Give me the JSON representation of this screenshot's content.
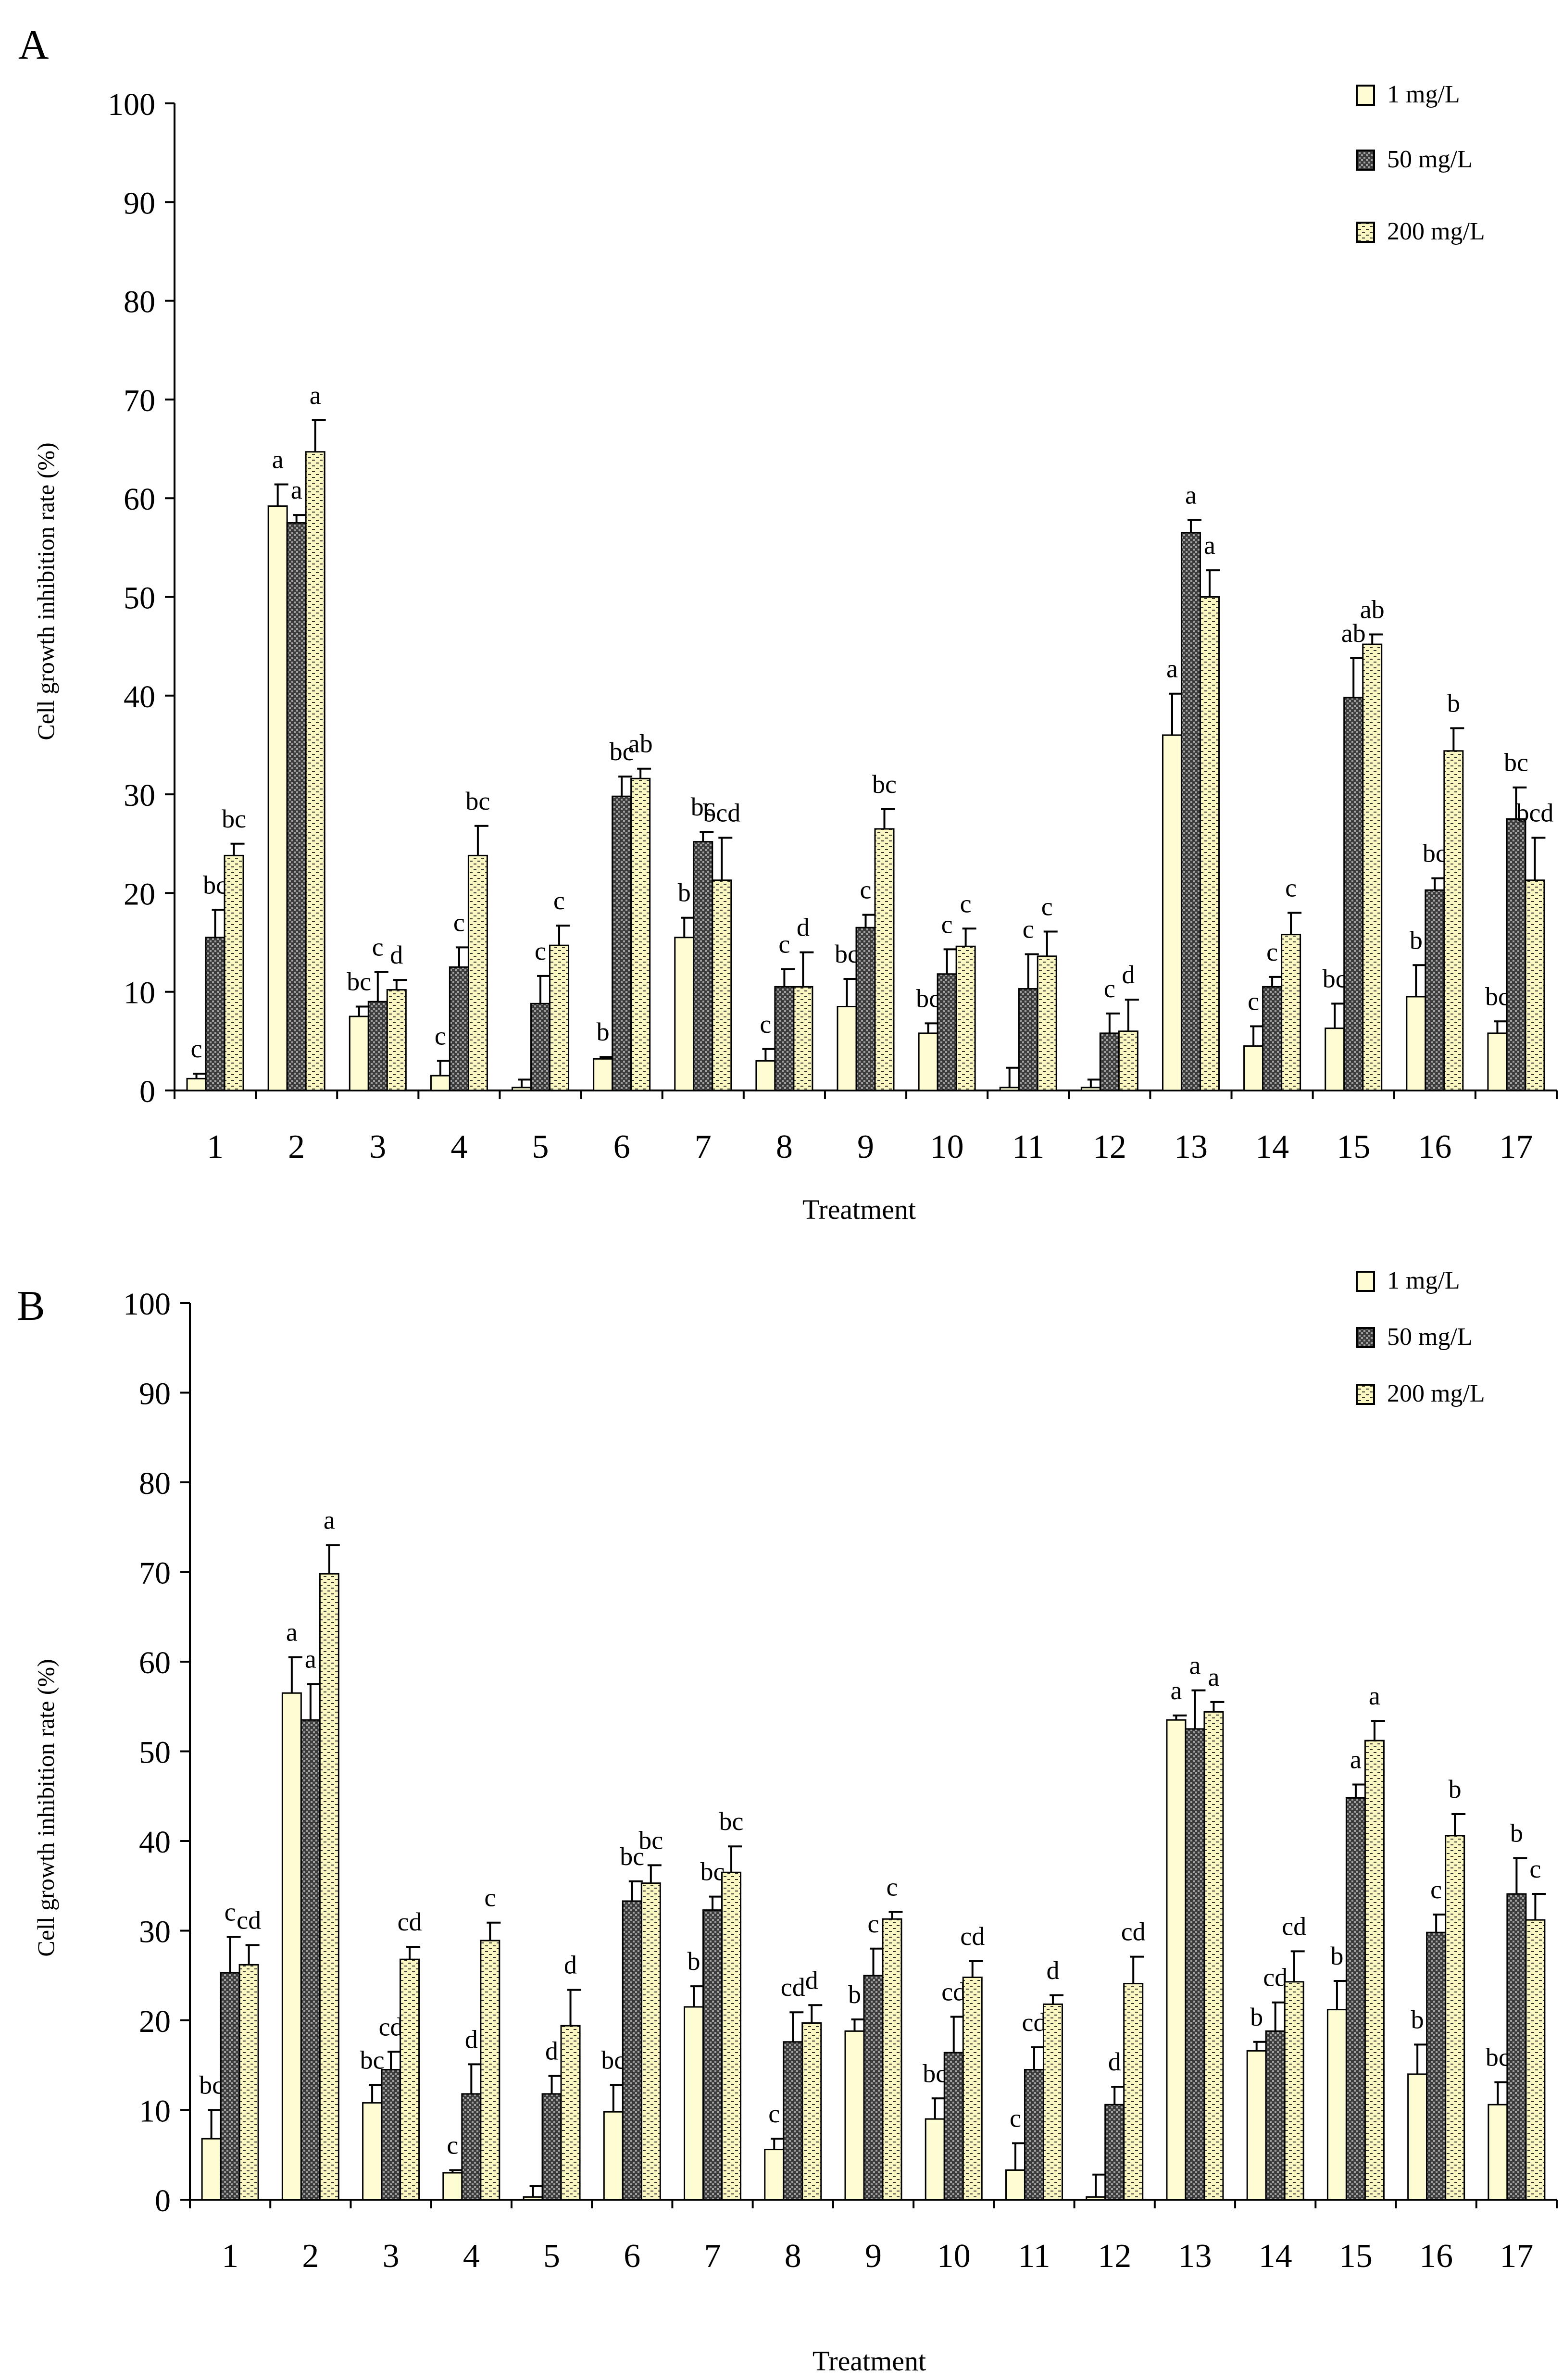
{
  "colors": {
    "series_1mg": "#fdfcd2",
    "series_50mg": "#6c6c6c",
    "series_200mg": "#f5f1bd",
    "axis": "#000000"
  },
  "chart_data": [
    {
      "type": "bar",
      "panel_label": "A",
      "title": "",
      "xlabel": "Treatment",
      "ylabel": "Cell growth inhibition rate (%)",
      "ylim": [
        0,
        100
      ],
      "yticks": [
        "0",
        "10",
        "20",
        "30",
        "40",
        "50",
        "60",
        "70",
        "80",
        "90",
        "100"
      ],
      "categories": [
        "1",
        "2",
        "3",
        "4",
        "5",
        "6",
        "7",
        "8",
        "9",
        "10",
        "11",
        "12",
        "13",
        "14",
        "15",
        "16",
        "17"
      ],
      "legend_position": "top-right",
      "series": [
        {
          "name": "1 mg/L",
          "values": [
            1.2,
            59.2,
            7.5,
            1.5,
            0.3,
            3.2,
            15.5,
            3.0,
            8.5,
            5.8,
            0.3,
            0.3,
            36.0,
            4.5,
            6.3,
            9.5,
            5.8
          ],
          "errors": [
            0.5,
            2.2,
            1.0,
            1.5,
            0.8,
            0.2,
            2.0,
            1.2,
            2.8,
            1.0,
            2.0,
            0.8,
            4.2,
            2.0,
            2.5,
            3.2,
            1.2
          ],
          "labels": [
            "c",
            "a",
            "bc",
            "c",
            "",
            "b",
            "b",
            "c",
            "bc",
            "bc",
            "",
            "",
            "a",
            "c",
            "bc",
            "b",
            "bc"
          ]
        },
        {
          "name": "50 mg/L",
          "values": [
            15.5,
            57.5,
            9.0,
            12.5,
            8.8,
            29.8,
            25.2,
            10.5,
            16.5,
            11.8,
            10.3,
            5.8,
            56.5,
            10.5,
            39.8,
            20.3,
            27.5
          ],
          "errors": [
            2.8,
            0.8,
            3.0,
            2.0,
            2.8,
            2.0,
            1.0,
            1.8,
            1.3,
            2.5,
            3.5,
            2.0,
            1.3,
            1.0,
            4.0,
            1.2,
            3.2
          ],
          "labels": [
            "bc",
            "a",
            "c",
            "c",
            "c",
            "bc",
            "bc",
            "c",
            "c",
            "c",
            "c",
            "c",
            "a",
            "c",
            "ab",
            "bc",
            "bc"
          ]
        },
        {
          "name": "200 mg/L",
          "values": [
            23.8,
            64.7,
            10.2,
            23.8,
            14.7,
            31.6,
            21.3,
            10.5,
            26.5,
            14.6,
            13.6,
            6.0,
            50.0,
            15.8,
            45.2,
            34.4,
            21.3
          ],
          "errors": [
            1.2,
            3.2,
            1.0,
            3.0,
            2.0,
            1.0,
            4.3,
            3.5,
            2.0,
            1.8,
            2.5,
            3.2,
            2.7,
            2.2,
            1.0,
            2.3,
            4.3
          ],
          "labels": [
            "bc",
            "a",
            "d",
            "bc",
            "c",
            "ab",
            "bcd",
            "d",
            "bc",
            "c",
            "c",
            "d",
            "a",
            "c",
            "ab",
            "b",
            "bcd"
          ]
        }
      ]
    },
    {
      "type": "bar",
      "panel_label": "B",
      "title": "",
      "xlabel": "Treatment",
      "ylabel": "Cell growth inhibition rate (%)",
      "ylim": [
        0,
        100
      ],
      "yticks": [
        "0",
        "10",
        "20",
        "30",
        "40",
        "50",
        "60",
        "70",
        "80",
        "90",
        "100"
      ],
      "categories": [
        "1",
        "2",
        "3",
        "4",
        "5",
        "6",
        "7",
        "8",
        "9",
        "10",
        "11",
        "12",
        "13",
        "14",
        "15",
        "16",
        "17"
      ],
      "legend_position": "top-right",
      "series": [
        {
          "name": "1 mg/L",
          "values": [
            6.8,
            56.5,
            10.8,
            3.0,
            0.3,
            9.8,
            21.5,
            5.6,
            18.8,
            9.0,
            3.3,
            0.3,
            53.5,
            16.6,
            21.2,
            14.0,
            10.6
          ],
          "errors": [
            3.2,
            4.0,
            2.0,
            0.3,
            1.2,
            3.0,
            2.3,
            1.2,
            1.3,
            2.3,
            3.0,
            2.5,
            0.5,
            1.0,
            3.2,
            3.3,
            2.5
          ],
          "labels": [
            "bc",
            "a",
            "bc",
            "c",
            "",
            "bc",
            "b",
            "c",
            "b",
            "bc",
            "c",
            "",
            "a",
            "b",
            "b",
            "b",
            "bc"
          ]
        },
        {
          "name": "50 mg/L",
          "values": [
            25.3,
            53.5,
            14.5,
            11.8,
            11.8,
            33.3,
            32.3,
            17.6,
            25.0,
            16.4,
            14.5,
            10.6,
            52.5,
            18.8,
            44.8,
            29.8,
            34.1
          ],
          "errors": [
            4.0,
            4.0,
            2.0,
            3.3,
            2.0,
            2.2,
            1.5,
            3.3,
            3.0,
            4.0,
            2.5,
            2.0,
            4.3,
            3.2,
            1.5,
            2.0,
            4.0
          ],
          "labels": [
            "c",
            "a",
            "cd",
            "d",
            "d",
            "bc",
            "bc",
            "cd",
            "c",
            "cd",
            "cd",
            "d",
            "a",
            "cd",
            "a",
            "c",
            "b"
          ]
        },
        {
          "name": "200 mg/L",
          "values": [
            26.2,
            69.8,
            26.8,
            28.9,
            19.4,
            35.3,
            36.5,
            19.7,
            31.3,
            24.8,
            21.8,
            24.1,
            54.4,
            24.3,
            51.2,
            40.6,
            31.2
          ],
          "errors": [
            2.2,
            3.2,
            1.4,
            2.0,
            4.0,
            2.0,
            2.9,
            2.0,
            0.8,
            1.8,
            1.0,
            3.0,
            1.1,
            3.4,
            2.2,
            2.4,
            2.9
          ],
          "labels": [
            "cd",
            "a",
            "cd",
            "c",
            "d",
            "bc",
            "bc",
            "d",
            "c",
            "cd",
            "d",
            "cd",
            "a",
            "cd",
            "a",
            "b",
            "c"
          ]
        }
      ]
    }
  ]
}
